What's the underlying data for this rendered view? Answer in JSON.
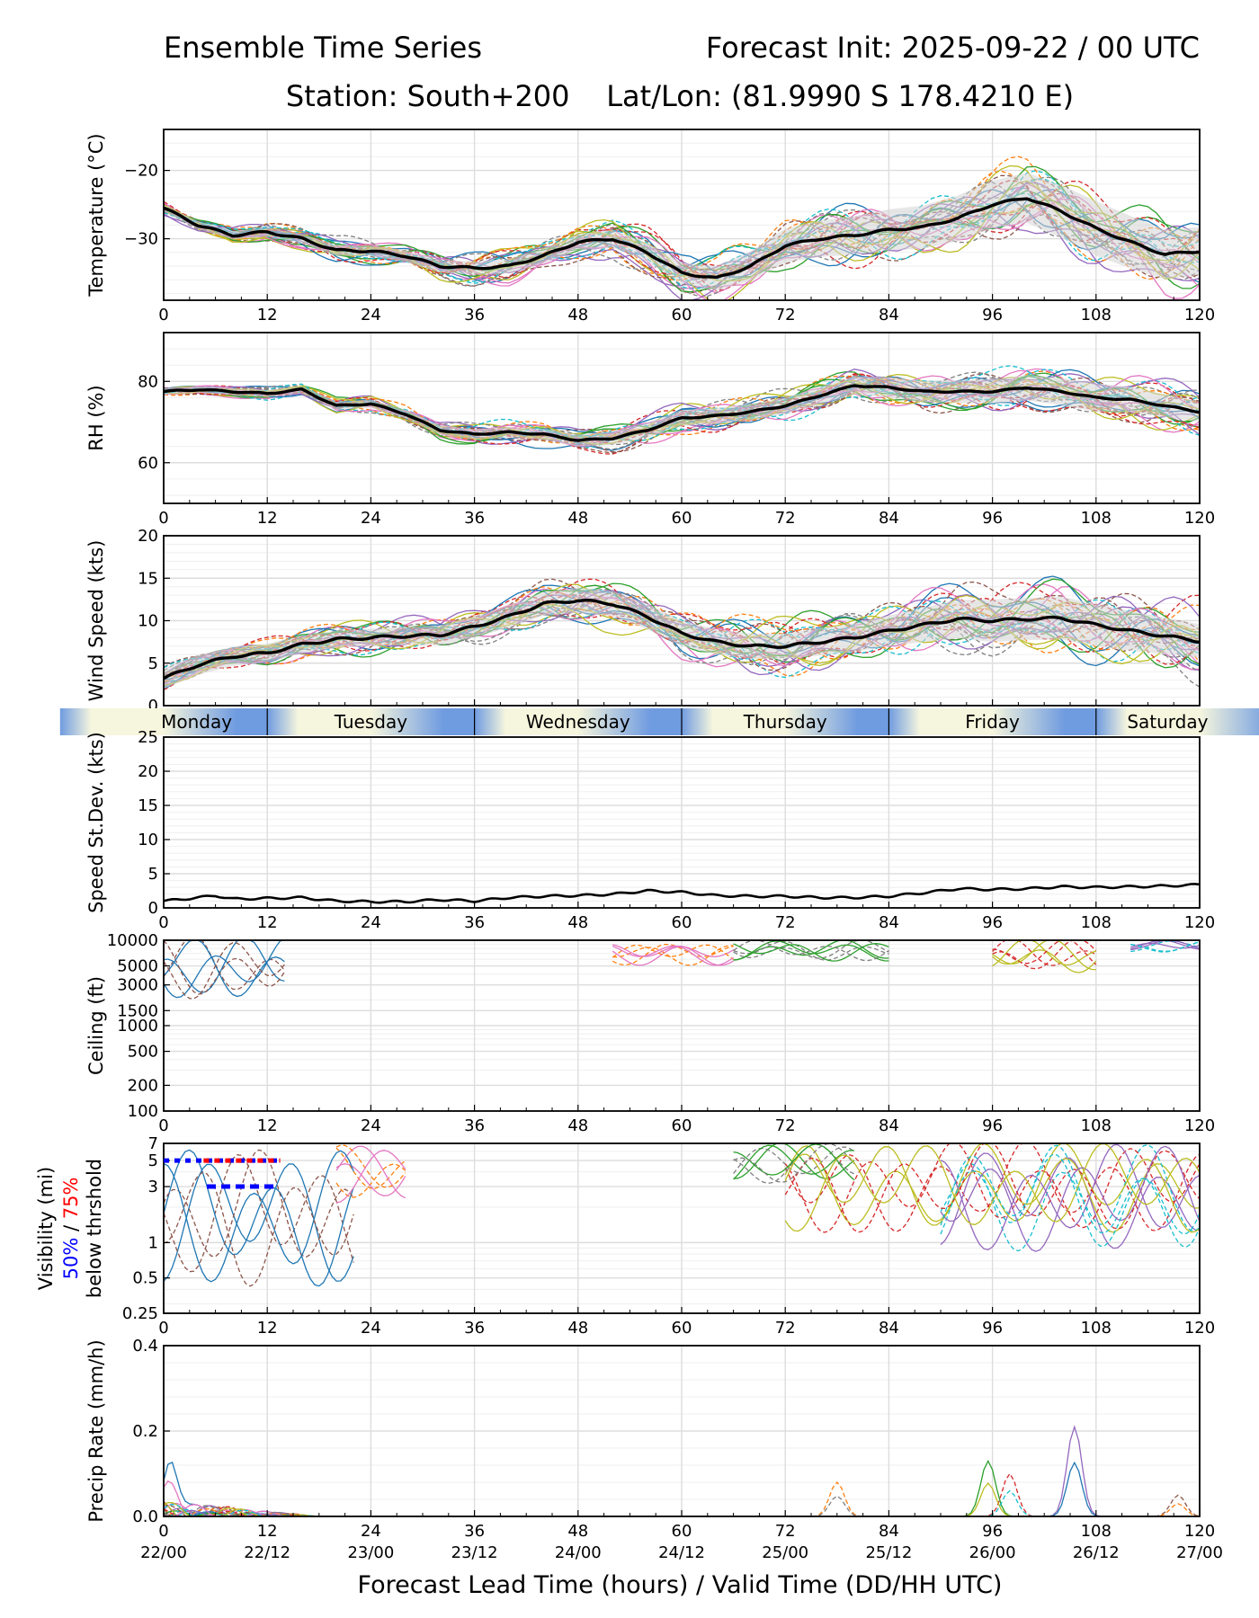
{
  "header": {
    "title_left": "Ensemble Time Series",
    "title_right": "Forecast Init: 2025-09-22 / 00 UTC",
    "subtitle": "Station: South+200    Lat/Lon: (81.9990 S 178.4210 E)"
  },
  "x_axis_label": "Forecast Lead Time (hours) / Valid Time (DD/HH UTC)",
  "x_ticks": [
    0,
    12,
    24,
    36,
    48,
    60,
    72,
    84,
    96,
    108,
    120
  ],
  "valid_times": [
    "22/00",
    "22/12",
    "23/00",
    "23/12",
    "24/00",
    "24/12",
    "25/00",
    "25/12",
    "26/00",
    "26/12",
    "27/00"
  ],
  "days": [
    "Monday",
    "Tuesday",
    "Wednesday",
    "Thursday",
    "Friday",
    "Saturday"
  ],
  "visibility_threshold_label": {
    "line1": "Visibility (mi)",
    "pct50": "50%",
    "sep": " / ",
    "pct75": "75%",
    "line3": "below thrshold"
  },
  "colors": {
    "member_palette": [
      "#1f77b4",
      "#ff7f0e",
      "#2ca02c",
      "#d62728",
      "#9467bd",
      "#8c564b",
      "#e377c2",
      "#7f7f7f",
      "#bcbd22",
      "#17becf"
    ],
    "mean": "#000000",
    "spread": "#d3d3d3",
    "pct50": "#0000ff",
    "pct75": "#ff0000"
  },
  "chart_data": [
    {
      "id": "temperature",
      "type": "line",
      "ylabel": "Temperature (°C)",
      "xlim": [
        0,
        120
      ],
      "ylim": [
        -39,
        -14
      ],
      "yticks": [
        -30,
        -20
      ],
      "grid": true,
      "mean": {
        "x": [
          0,
          4,
          8,
          12,
          16,
          20,
          24,
          28,
          32,
          36,
          40,
          44,
          48,
          52,
          56,
          60,
          64,
          68,
          72,
          76,
          80,
          84,
          88,
          92,
          96,
          100,
          104,
          108,
          112,
          116,
          120
        ],
        "y": [
          -25.5,
          -28,
          -29.5,
          -29,
          -30,
          -31.7,
          -31.8,
          -32.5,
          -34,
          -34.3,
          -34,
          -32.5,
          -30.5,
          -30,
          -32,
          -35,
          -35.8,
          -34,
          -31,
          -30,
          -29.5,
          -28.7,
          -28.3,
          -27,
          -25,
          -24,
          -26,
          -28.5,
          -30.5,
          -32.3,
          -31.8
        ]
      },
      "spread_halfwidth": {
        "x": [
          0,
          24,
          48,
          60,
          72,
          84,
          96,
          108,
          120
        ],
        "y": [
          0.5,
          0.8,
          1.2,
          1.5,
          2.5,
          3,
          3.5,
          4,
          3.5
        ]
      },
      "members": 30
    },
    {
      "id": "rh",
      "type": "line",
      "ylabel": "RH (%)",
      "xlim": [
        0,
        120
      ],
      "ylim": [
        50,
        92
      ],
      "yticks": [
        60,
        80
      ],
      "grid": true,
      "mean": {
        "x": [
          0,
          4,
          8,
          12,
          16,
          20,
          24,
          28,
          32,
          36,
          40,
          44,
          48,
          52,
          56,
          60,
          64,
          68,
          72,
          76,
          80,
          84,
          88,
          92,
          96,
          100,
          104,
          108,
          112,
          116,
          120
        ],
        "y": [
          77.5,
          78,
          77.5,
          77,
          78,
          74,
          74.5,
          72,
          68,
          67,
          67.5,
          67,
          65.5,
          66,
          68,
          71,
          71.5,
          72.5,
          74,
          76.5,
          79,
          78.5,
          77.5,
          77.5,
          77.5,
          78.5,
          77.5,
          76,
          75.5,
          74,
          72.5
        ]
      },
      "spread_halfwidth": {
        "x": [
          0,
          24,
          48,
          60,
          72,
          84,
          96,
          108,
          120
        ],
        "y": [
          0.8,
          1,
          1.5,
          2,
          2,
          2.5,
          3,
          3.5,
          2.5
        ]
      },
      "members": 30
    },
    {
      "id": "wind",
      "type": "line",
      "ylabel": "Wind Speed (kts)",
      "xlim": [
        0,
        120
      ],
      "ylim": [
        0,
        20
      ],
      "yticks": [
        0,
        5,
        10,
        15,
        20
      ],
      "grid": true,
      "mean": {
        "x": [
          0,
          4,
          8,
          12,
          16,
          20,
          24,
          28,
          32,
          36,
          40,
          44,
          48,
          52,
          56,
          60,
          64,
          68,
          72,
          76,
          80,
          84,
          88,
          92,
          96,
          100,
          104,
          108,
          112,
          116,
          120
        ],
        "y": [
          3.2,
          4.8,
          5.8,
          6.2,
          7.2,
          7.8,
          8,
          8.2,
          8.3,
          9.3,
          10.5,
          12,
          12.4,
          12,
          10.5,
          8.5,
          7.5,
          7,
          7,
          7.5,
          8,
          8.8,
          9.5,
          10.2,
          10,
          10.2,
          10.3,
          9.5,
          8.8,
          8.2,
          7.6
        ]
      },
      "spread_halfwidth": {
        "x": [
          0,
          24,
          48,
          60,
          72,
          84,
          96,
          108,
          120
        ],
        "y": [
          1.2,
          1,
          1.5,
          1.5,
          1.5,
          1.8,
          2.5,
          2.5,
          2
        ]
      },
      "members": 30
    },
    {
      "id": "speed_sd",
      "type": "line",
      "ylabel": "Speed St.Dev. (kts)",
      "xlim": [
        0,
        120
      ],
      "ylim": [
        0,
        25
      ],
      "yticks": [
        0,
        5,
        10,
        15,
        20,
        25
      ],
      "grid": true,
      "series": [
        {
          "name": "st.dev",
          "x": [
            0,
            4,
            6,
            8,
            12,
            16,
            20,
            24,
            28,
            32,
            36,
            40,
            44,
            48,
            52,
            56,
            60,
            64,
            68,
            72,
            76,
            80,
            84,
            88,
            92,
            96,
            100,
            104,
            108,
            112,
            116,
            120
          ],
          "y": [
            1.0,
            1.5,
            1.8,
            1.3,
            1.4,
            1.5,
            1.0,
            0.9,
            0.9,
            1.2,
            1.0,
            1.5,
            1.7,
            1.8,
            2.0,
            2.5,
            2.3,
            1.8,
            1.7,
            1.7,
            1.5,
            1.5,
            1.7,
            2.2,
            2.8,
            2.7,
            2.8,
            3.1,
            3.0,
            3.1,
            3.2,
            3.4
          ]
        }
      ]
    },
    {
      "id": "ceiling",
      "type": "line",
      "ylabel": "Ceiling (ft)",
      "yscale": "log",
      "xlim": [
        0,
        120
      ],
      "ylim": [
        100,
        10000
      ],
      "ytick_labels": [
        "100",
        "200",
        "500",
        "1000",
        "1500",
        "3000",
        "5000",
        "10000"
      ],
      "grid": true,
      "members": 30
    },
    {
      "id": "visibility",
      "type": "line",
      "yscale": "log",
      "xlim": [
        0,
        120
      ],
      "ylim": [
        0.25,
        7
      ],
      "ytick_labels": [
        "0.25",
        "0.5",
        "1",
        "3",
        "5",
        "7"
      ],
      "grid": true,
      "threshold_markers": [
        {
          "x0": 0,
          "x1": 13.5,
          "y": 5,
          "percentile": "50% / 75%"
        },
        {
          "x0": 5,
          "x1": 13,
          "y": 3,
          "percentile": "50%"
        }
      ],
      "members": 30
    },
    {
      "id": "precip",
      "type": "line",
      "ylabel": "Precip Rate (mm/h)",
      "xlim": [
        0,
        120
      ],
      "ylim": [
        0,
        0.4
      ],
      "ytick_labels": [
        "0.0",
        "0.2",
        "0.4"
      ],
      "grid": true,
      "peaks": [
        {
          "x": 0.8,
          "y": 0.13
        },
        {
          "x": 78,
          "y": 0.08
        },
        {
          "x": 95.5,
          "y": 0.13
        },
        {
          "x": 98,
          "y": 0.1
        },
        {
          "x": 105.5,
          "y": 0.21
        },
        {
          "x": 117.5,
          "y": 0.05
        }
      ],
      "members": 30
    }
  ]
}
